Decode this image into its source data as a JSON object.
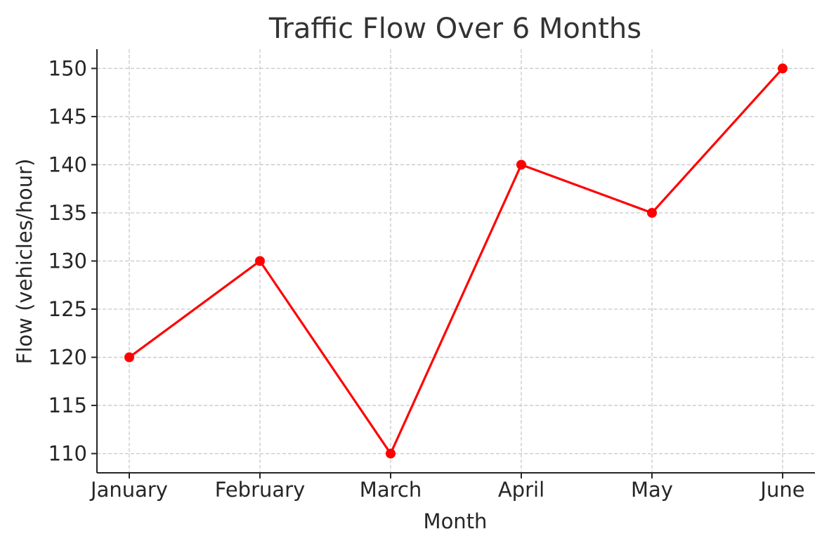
{
  "chart_data": {
    "type": "line",
    "title": "Traffic Flow Over 6 Months",
    "xlabel": "Month",
    "ylabel": "Flow (vehicles/hour)",
    "categories": [
      "January",
      "February",
      "March",
      "April",
      "May",
      "June"
    ],
    "series": [
      {
        "values": [
          120,
          130,
          110,
          140,
          135,
          150
        ],
        "color": "#ff0000",
        "marker": "circle"
      }
    ],
    "ylim": [
      108,
      152
    ],
    "yticks": [
      110,
      115,
      120,
      125,
      130,
      135,
      140,
      145,
      150
    ],
    "grid": true,
    "grid_style": "dashed",
    "legend": "none"
  }
}
